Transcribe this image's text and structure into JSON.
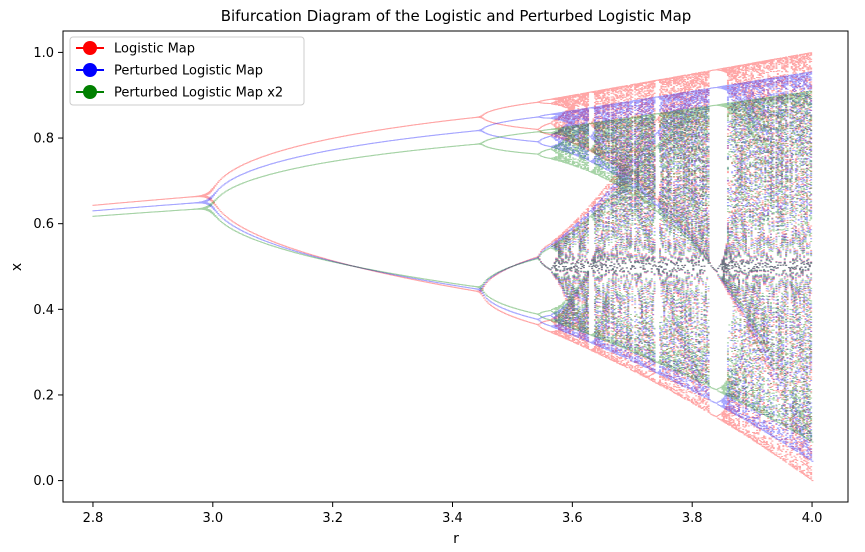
{
  "chart_data": {
    "type": "scatter",
    "title": "Bifurcation Diagram of the Logistic and Perturbed Logistic Map",
    "xlabel": "r",
    "ylabel": "x",
    "xlim": [
      2.75,
      4.06
    ],
    "ylim": [
      -0.05,
      1.05
    ],
    "xticks": [
      2.8,
      3.0,
      3.2,
      3.4,
      3.6,
      3.8,
      4.0
    ],
    "xtick_labels": [
      "2.8",
      "3.0",
      "3.2",
      "3.4",
      "3.6",
      "3.8",
      "4.0"
    ],
    "yticks": [
      0.0,
      0.2,
      0.4,
      0.6,
      0.8,
      1.0
    ],
    "ytick_labels": [
      "0.0",
      "0.2",
      "0.4",
      "0.6",
      "0.8",
      "1.0"
    ],
    "grid": false,
    "legend_position": "top-left",
    "r_range": [
      2.8,
      4.0
    ],
    "series": [
      {
        "name": "Logistic Map",
        "color": "#ff0000",
        "map": "r*x*(1-x)",
        "offset": 0.0,
        "scale": 1.0
      },
      {
        "name": "Perturbed Logistic Map",
        "color": "#0000ff",
        "map": "perturbed",
        "offset": 0.045,
        "scale": 0.91
      },
      {
        "name": "Perturbed Logistic Map x2",
        "color": "#008000",
        "map": "perturbed x2",
        "offset": 0.09,
        "scale": 0.82
      }
    ]
  }
}
